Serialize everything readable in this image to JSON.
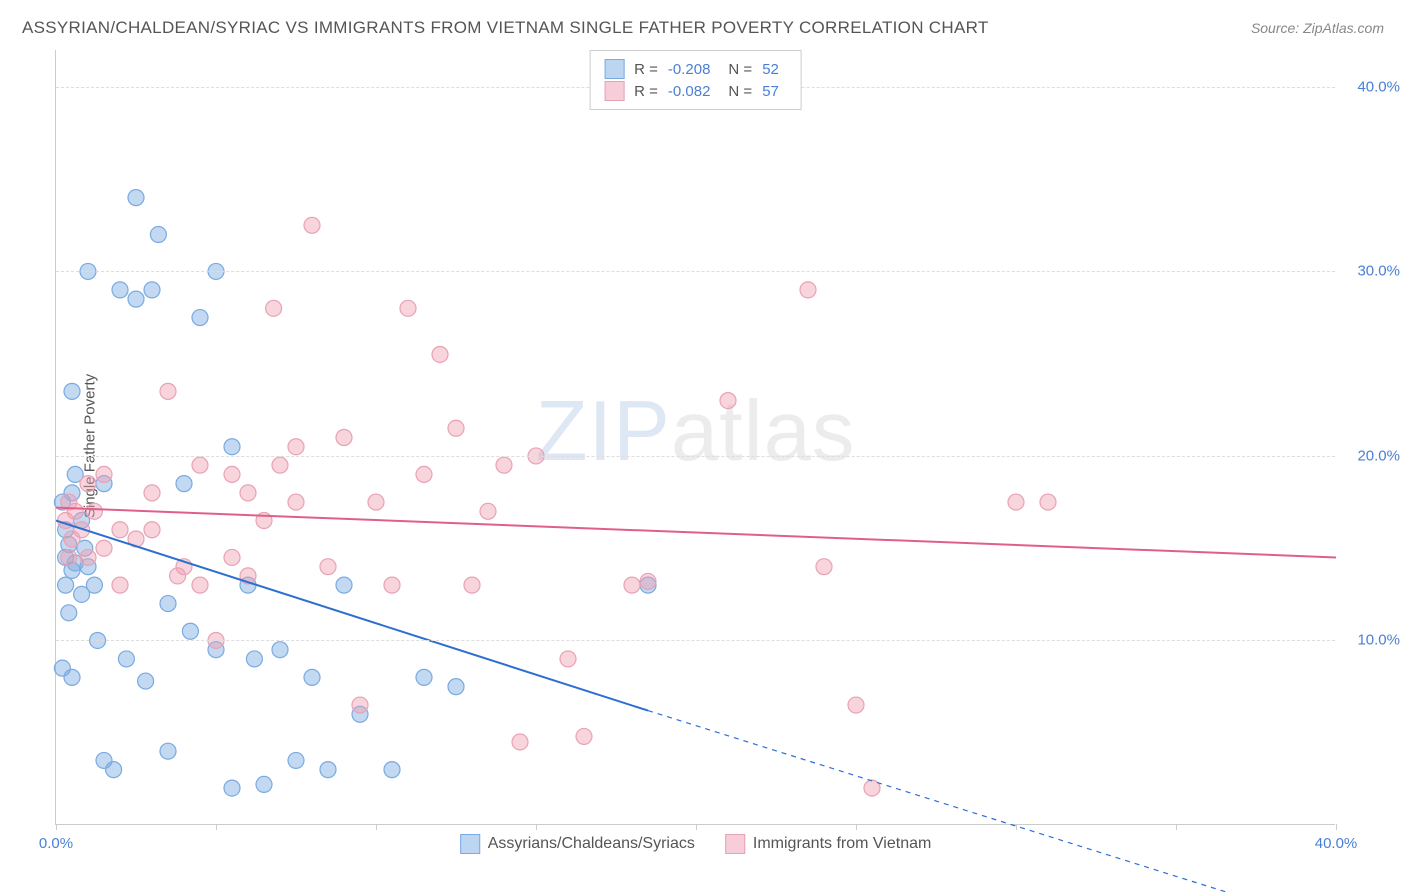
{
  "title": "ASSYRIAN/CHALDEAN/SYRIAC VS IMMIGRANTS FROM VIETNAM SINGLE FATHER POVERTY CORRELATION CHART",
  "source": "Source: ZipAtlas.com",
  "watermark_part1": "ZIP",
  "watermark_part2": "atlas",
  "y_axis_label": "Single Father Poverty",
  "chart": {
    "type": "scatter",
    "xlim": [
      0,
      40
    ],
    "ylim": [
      0,
      42
    ],
    "x_ticks": [
      0,
      5,
      10,
      15,
      20,
      25,
      30,
      35,
      40
    ],
    "x_tick_labels": {
      "0": "0.0%",
      "40": "40.0%"
    },
    "y_grid": [
      10,
      20,
      30,
      40
    ],
    "y_tick_labels": {
      "10": "10.0%",
      "20": "20.0%",
      "30": "30.0%",
      "40": "40.0%"
    },
    "background_color": "#ffffff",
    "grid_color": "#dddddd",
    "series": [
      {
        "name": "Assyrians/Chaldeans/Syriacs",
        "color_fill": "rgba(120,170,225,0.45)",
        "color_stroke": "#7aaae1",
        "swatch_fill": "#bcd6f2",
        "swatch_stroke": "#7aaae1",
        "R": "-0.208",
        "N": "52",
        "trend": {
          "x1": 0,
          "y1": 16.5,
          "x2_solid": 18.5,
          "y2_solid": 6.2,
          "x2": 40,
          "y2": -5.5,
          "color": "#2d6fd0",
          "width": 2
        },
        "points": [
          [
            0.2,
            17.5
          ],
          [
            0.3,
            16.0
          ],
          [
            0.3,
            14.5
          ],
          [
            0.4,
            15.2
          ],
          [
            0.5,
            18.0
          ],
          [
            0.5,
            13.8
          ],
          [
            0.6,
            14.2
          ],
          [
            0.8,
            12.5
          ],
          [
            0.8,
            16.5
          ],
          [
            0.9,
            15.0
          ],
          [
            0.2,
            8.5
          ],
          [
            0.5,
            8.0
          ],
          [
            0.5,
            23.5
          ],
          [
            1.0,
            30.0
          ],
          [
            1.2,
            13.0
          ],
          [
            1.5,
            18.5
          ],
          [
            1.3,
            10.0
          ],
          [
            1.5,
            3.5
          ],
          [
            1.8,
            3.0
          ],
          [
            2.0,
            29.0
          ],
          [
            2.2,
            9.0
          ],
          [
            2.5,
            34.0
          ],
          [
            2.8,
            7.8
          ],
          [
            3.0,
            29.0
          ],
          [
            3.2,
            32.0
          ],
          [
            3.5,
            4.0
          ],
          [
            4.0,
            18.5
          ],
          [
            4.2,
            10.5
          ],
          [
            4.5,
            27.5
          ],
          [
            5.0,
            9.5
          ],
          [
            5.0,
            30.0
          ],
          [
            5.5,
            20.5
          ],
          [
            5.5,
            2.0
          ],
          [
            6.0,
            13.0
          ],
          [
            6.2,
            9.0
          ],
          [
            6.5,
            2.2
          ],
          [
            7.0,
            9.5
          ],
          [
            7.5,
            3.5
          ],
          [
            8.0,
            8.0
          ],
          [
            8.5,
            3.0
          ],
          [
            9.0,
            13.0
          ],
          [
            9.5,
            6.0
          ],
          [
            10.5,
            3.0
          ],
          [
            11.5,
            8.0
          ],
          [
            12.5,
            7.5
          ],
          [
            18.5,
            13.0
          ],
          [
            0.4,
            11.5
          ],
          [
            0.6,
            19.0
          ],
          [
            1.0,
            14.0
          ],
          [
            2.5,
            28.5
          ],
          [
            3.5,
            12.0
          ],
          [
            0.3,
            13.0
          ]
        ]
      },
      {
        "name": "Immigrants from Vietnam",
        "color_fill": "rgba(240,160,180,0.45)",
        "color_stroke": "#e8a2b5",
        "swatch_fill": "#f6cdd8",
        "swatch_stroke": "#e8a2b5",
        "R": "-0.082",
        "N": "57",
        "trend": {
          "x1": 0,
          "y1": 17.2,
          "x2_solid": 40,
          "y2_solid": 14.5,
          "x2": 40,
          "y2": 14.5,
          "color": "#e05f8a",
          "width": 2
        },
        "points": [
          [
            0.3,
            16.5
          ],
          [
            0.4,
            17.5
          ],
          [
            0.5,
            15.5
          ],
          [
            0.8,
            16.0
          ],
          [
            1.0,
            14.5
          ],
          [
            1.2,
            17.0
          ],
          [
            1.5,
            15.0
          ],
          [
            1.5,
            19.0
          ],
          [
            2.0,
            16.0
          ],
          [
            2.5,
            15.5
          ],
          [
            3.0,
            18.0
          ],
          [
            3.5,
            23.5
          ],
          [
            3.8,
            13.5
          ],
          [
            4.0,
            14.0
          ],
          [
            4.5,
            13.0
          ],
          [
            5.0,
            10.0
          ],
          [
            5.5,
            19.0
          ],
          [
            5.5,
            14.5
          ],
          [
            6.0,
            18.0
          ],
          [
            6.5,
            16.5
          ],
          [
            6.8,
            28.0
          ],
          [
            7.0,
            19.5
          ],
          [
            7.5,
            17.5
          ],
          [
            8.0,
            32.5
          ],
          [
            8.5,
            14.0
          ],
          [
            9.0,
            21.0
          ],
          [
            9.5,
            6.5
          ],
          [
            10.0,
            17.5
          ],
          [
            10.5,
            13.0
          ],
          [
            11.0,
            28.0
          ],
          [
            11.5,
            19.0
          ],
          [
            12.0,
            25.5
          ],
          [
            12.5,
            21.5
          ],
          [
            13.0,
            13.0
          ],
          [
            13.5,
            17.0
          ],
          [
            14.0,
            19.5
          ],
          [
            14.5,
            4.5
          ],
          [
            15.0,
            20.0
          ],
          [
            16.0,
            9.0
          ],
          [
            16.5,
            4.8
          ],
          [
            18.0,
            13.0
          ],
          [
            18.5,
            13.2
          ],
          [
            21.0,
            23.0
          ],
          [
            23.5,
            29.0
          ],
          [
            24.0,
            14.0
          ],
          [
            25.0,
            6.5
          ],
          [
            25.5,
            2.0
          ],
          [
            30.0,
            17.5
          ],
          [
            31.0,
            17.5
          ],
          [
            0.4,
            14.5
          ],
          [
            0.6,
            17.0
          ],
          [
            1.0,
            18.5
          ],
          [
            2.0,
            13.0
          ],
          [
            3.0,
            16.0
          ],
          [
            4.5,
            19.5
          ],
          [
            6.0,
            13.5
          ],
          [
            7.5,
            20.5
          ]
        ]
      }
    ]
  },
  "marker_radius": 8
}
